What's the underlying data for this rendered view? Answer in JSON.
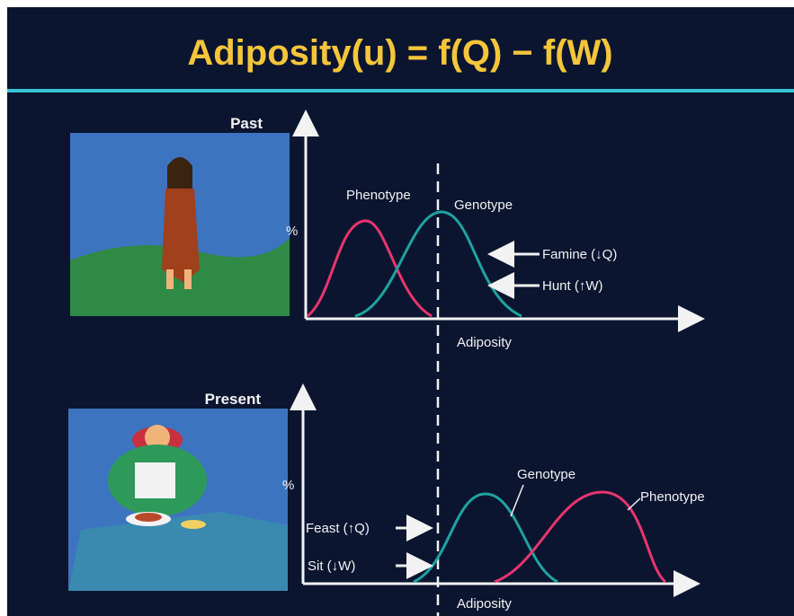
{
  "header": {
    "title": "Adiposity(u) = f(Q) − f(W)"
  },
  "panels": [
    {
      "label": "Past",
      "y_axis_label": "%",
      "x_axis_label": "Adiposity",
      "curve_labels": [
        "Phenotype",
        "Genotype"
      ],
      "annotations": [
        "Famine (↓Q)",
        "Hunt (↑W)"
      ]
    },
    {
      "label": "Present",
      "y_axis_label": "%",
      "x_axis_label": "Adiposity",
      "curve_labels": [
        "Genotype",
        "Phenotype"
      ],
      "annotations": [
        "Feast (↑Q)",
        "Sit (↓W)"
      ]
    }
  ]
}
